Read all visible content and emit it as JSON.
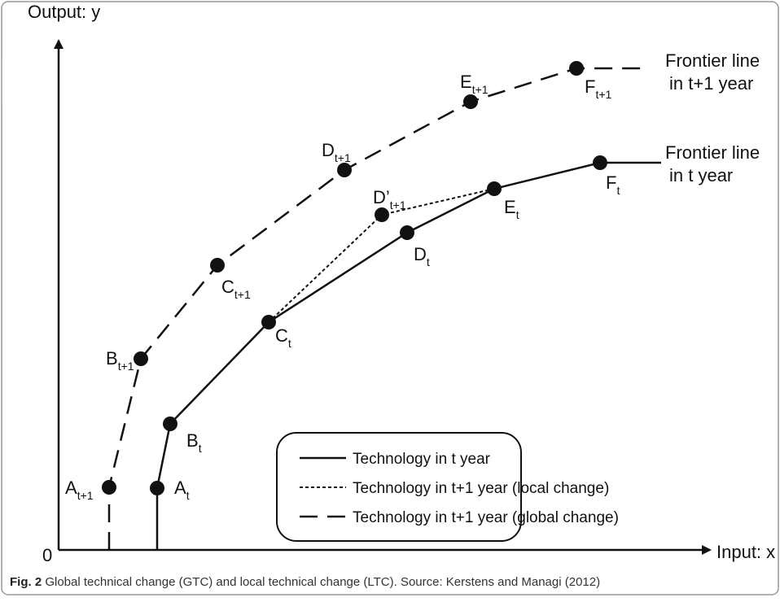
{
  "axes": {
    "y_label": "Output: y",
    "x_label": "Input: x",
    "origin": "0"
  },
  "frontier_labels": {
    "t_plus_1": [
      "Frontier line",
      "in t+1 year"
    ],
    "t": [
      "Frontier line",
      "in t year"
    ]
  },
  "points": {
    "global": [
      {
        "letter": "A",
        "sub": "t+1"
      },
      {
        "letter": "B",
        "sub": "t+1"
      },
      {
        "letter": "C",
        "sub": "t+1"
      },
      {
        "letter": "D",
        "sub": "t+1"
      },
      {
        "letter": "E",
        "sub": "t+1"
      },
      {
        "letter": "F",
        "sub": "t+1"
      }
    ],
    "current": [
      {
        "letter": "A",
        "sub": "t"
      },
      {
        "letter": "B",
        "sub": "t"
      },
      {
        "letter": "C",
        "sub": "t"
      },
      {
        "letter": "D",
        "sub": "t"
      },
      {
        "letter": "E",
        "sub": "t"
      },
      {
        "letter": "F",
        "sub": "t"
      }
    ],
    "local": {
      "letter": "D’",
      "sub": "t+1"
    }
  },
  "legend": [
    "Technology in t year",
    "Technology in t+1 year (local change)",
    "Technology in t+1 year (global change)"
  ],
  "caption": {
    "label": "Fig. 2",
    "text": " Global technical change (GTC) and local technical change (LTC). Source: Kerstens and Managi (2012)"
  }
}
